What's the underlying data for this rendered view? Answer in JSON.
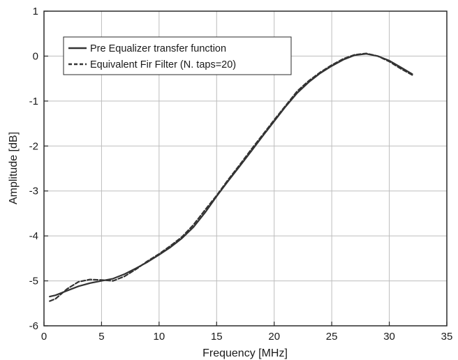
{
  "chart_data": {
    "type": "line",
    "title": "",
    "xlabel": "Frequency [MHz]",
    "ylabel": "Amplitude [dB]",
    "xlim": [
      0,
      35
    ],
    "ylim": [
      -6,
      1
    ],
    "xticks": [
      0,
      5,
      10,
      15,
      20,
      25,
      30,
      35
    ],
    "yticks": [
      -6,
      -5,
      -4,
      -3,
      -2,
      -1,
      0,
      1
    ],
    "grid": true,
    "legend_position": "top-left",
    "series": [
      {
        "name": "Pre Equalizer transfer function",
        "style": "solid",
        "color": "#333333",
        "x": [
          0.5,
          1,
          2,
          3,
          4,
          5,
          6,
          7,
          8,
          9,
          10,
          11,
          12,
          13,
          14,
          15,
          16,
          17,
          18,
          19,
          20,
          21,
          22,
          23,
          24,
          25,
          26,
          27,
          28,
          29,
          30,
          31,
          32
        ],
        "y": [
          -5.35,
          -5.32,
          -5.22,
          -5.12,
          -5.05,
          -5.0,
          -4.95,
          -4.85,
          -4.72,
          -4.58,
          -4.42,
          -4.25,
          -4.05,
          -3.8,
          -3.48,
          -3.12,
          -2.78,
          -2.45,
          -2.12,
          -1.78,
          -1.45,
          -1.12,
          -0.82,
          -0.58,
          -0.38,
          -0.22,
          -0.08,
          0.02,
          0.05,
          0.0,
          -0.1,
          -0.25,
          -0.4
        ]
      },
      {
        "name": "Equivalent Fir Filter (N. taps=20)",
        "style": "dashed",
        "color": "#333333",
        "x": [
          0.5,
          1,
          2,
          3,
          4,
          5,
          6,
          7,
          8,
          9,
          10,
          11,
          12,
          13,
          14,
          15,
          16,
          17,
          18,
          19,
          20,
          21,
          22,
          23,
          24,
          25,
          26,
          27,
          28,
          29,
          30,
          31,
          32
        ],
        "y": [
          -5.45,
          -5.4,
          -5.18,
          -5.02,
          -4.97,
          -4.98,
          -5.0,
          -4.9,
          -4.74,
          -4.56,
          -4.4,
          -4.22,
          -4.02,
          -3.75,
          -3.42,
          -3.1,
          -2.75,
          -2.42,
          -2.08,
          -1.75,
          -1.42,
          -1.1,
          -0.78,
          -0.55,
          -0.36,
          -0.2,
          -0.06,
          0.03,
          0.06,
          0.0,
          -0.12,
          -0.28,
          -0.42
        ]
      }
    ]
  }
}
